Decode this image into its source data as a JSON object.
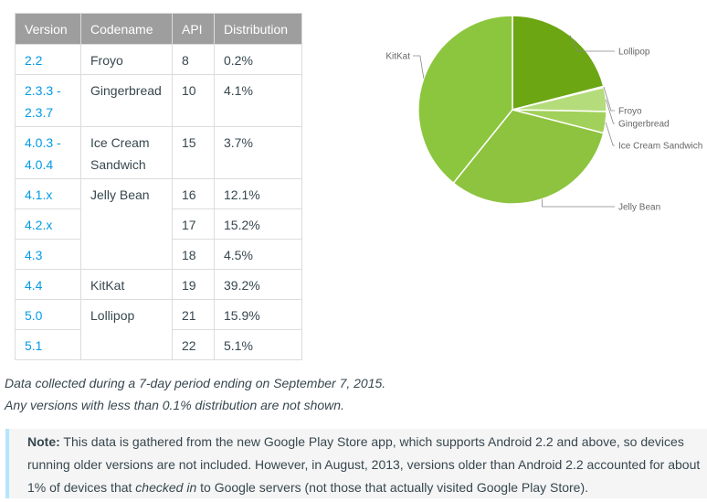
{
  "table": {
    "headers": [
      "Version",
      "Codename",
      "API",
      "Distribution"
    ],
    "rows": [
      {
        "version": "2.2",
        "codename": "Froyo",
        "api": "8",
        "distribution": "0.2%"
      },
      {
        "version": "2.3.3 - 2.3.7",
        "version_line1": "2.3.3 -",
        "version_line2": "2.3.7",
        "codename": "Gingerbread",
        "api": "10",
        "distribution": "4.1%"
      },
      {
        "version": "4.0.3 - 4.0.4",
        "version_line1": "4.0.3 -",
        "version_line2": "4.0.4",
        "codename": "Ice Cream Sandwich",
        "codename_line1": "Ice Cream",
        "codename_line2": "Sandwich",
        "api": "15",
        "distribution": "3.7%"
      },
      {
        "version": "4.1.x",
        "codename": "Jelly Bean",
        "api": "16",
        "distribution": "12.1%"
      },
      {
        "version": "4.2.x",
        "codename": "",
        "api": "17",
        "distribution": "15.2%"
      },
      {
        "version": "4.3",
        "codename": "",
        "api": "18",
        "distribution": "4.5%"
      },
      {
        "version": "4.4",
        "codename": "KitKat",
        "api": "19",
        "distribution": "39.2%"
      },
      {
        "version": "5.0",
        "codename": "Lollipop",
        "api": "21",
        "distribution": "15.9%"
      },
      {
        "version": "5.1",
        "codename": "",
        "api": "22",
        "distribution": "5.1%"
      }
    ]
  },
  "chart_data": {
    "type": "pie",
    "categories": [
      "Lollipop",
      "Froyo",
      "Gingerbread",
      "Ice Cream Sandwich",
      "Jelly Bean",
      "KitKat"
    ],
    "values": [
      21.0,
      0.2,
      4.1,
      3.7,
      31.8,
      39.2
    ],
    "colors": [
      "#6ca613",
      "#d7eaa8",
      "#b5dc7b",
      "#a2d15b",
      "#8dc33f",
      "#8cc63e"
    ],
    "legend": "labels beside slices",
    "title": ""
  },
  "footnotes": {
    "line1": "Data collected during a 7-day period ending on September 7, 2015.",
    "line2": "Any versions with less than 0.1% distribution are not shown."
  },
  "note": {
    "label": "Note:",
    "text_before": " This data is gathered from the new Google Play Store app, which supports Android 2.2 and above, so devices running older versions are not included. However, in August, 2013, versions older than Android 2.2 accounted for about 1% of devices that ",
    "emphasis": "checked in",
    "text_after": " to Google servers (not those that actually visited Google Play Store)."
  },
  "colors": {
    "header_bg": "#9e9e9e",
    "link": "#039be5",
    "note_border": "#b3e5fc",
    "note_bg": "#f5f5f5"
  }
}
